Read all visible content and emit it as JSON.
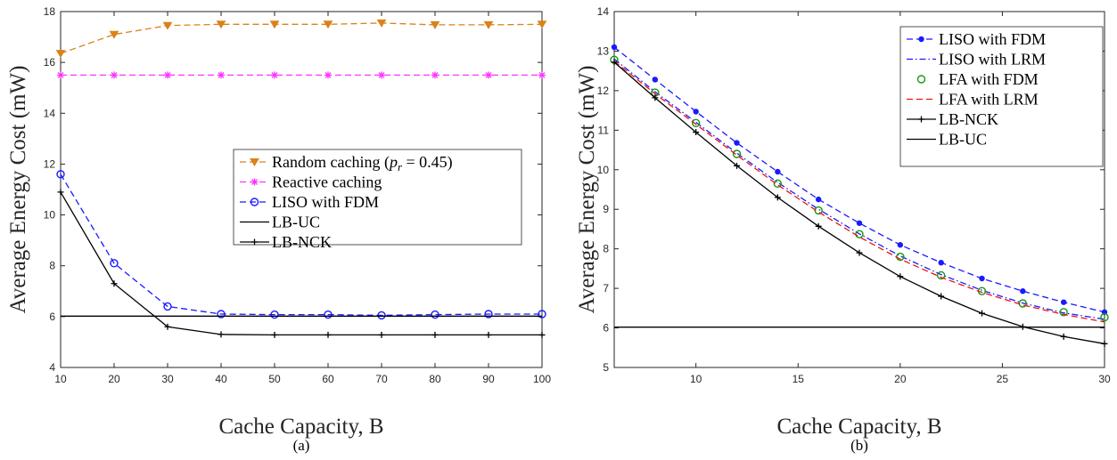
{
  "chart_data": [
    {
      "type": "line",
      "caption": "(a)",
      "xlabel": "Cache Capacity, B",
      "ylabel": "Average Energy Cost (mW)",
      "xlim": [
        10,
        100
      ],
      "ylim": [
        4,
        18
      ],
      "xticks": [
        10,
        20,
        30,
        40,
        50,
        60,
        70,
        80,
        90,
        100
      ],
      "yticks": [
        4,
        6,
        8,
        10,
        12,
        14,
        16,
        18
      ],
      "grid": false,
      "legend_position": "center-right",
      "series": [
        {
          "name": "Random caching (p_r = 0.45)",
          "legend_prefix": "Random caching (",
          "legend_math": "p",
          "legend_sub": "r",
          "legend_suffix": " = 0.45)",
          "color": "#d9821a",
          "dash": "dashed",
          "marker": "triangle-down",
          "x": [
            10,
            20,
            30,
            40,
            50,
            60,
            70,
            80,
            90,
            100
          ],
          "y": [
            16.35,
            17.1,
            17.45,
            17.5,
            17.5,
            17.5,
            17.55,
            17.48,
            17.48,
            17.5
          ]
        },
        {
          "name": "Reactive caching",
          "color": "#ff33ff",
          "dash": "dashed",
          "marker": "star",
          "x": [
            10,
            20,
            30,
            40,
            50,
            60,
            70,
            80,
            90,
            100
          ],
          "y": [
            15.5,
            15.5,
            15.5,
            15.5,
            15.5,
            15.5,
            15.5,
            15.5,
            15.5,
            15.5
          ]
        },
        {
          "name": "LISO with FDM",
          "color": "#1a1aff",
          "dash": "dashed",
          "marker": "circle-open",
          "x": [
            10,
            20,
            30,
            40,
            50,
            60,
            70,
            80,
            90,
            100
          ],
          "y": [
            11.6,
            8.1,
            6.4,
            6.1,
            6.08,
            6.08,
            6.05,
            6.08,
            6.1,
            6.1
          ]
        },
        {
          "name": "LB-UC",
          "color": "#000000",
          "dash": "solid",
          "marker": "none",
          "x": [
            10,
            100
          ],
          "y": [
            6.02,
            6.02
          ]
        },
        {
          "name": "LB-NCK",
          "color": "#000000",
          "dash": "solid",
          "marker": "plus",
          "x": [
            10,
            20,
            30,
            40,
            50,
            60,
            70,
            80,
            90,
            100
          ],
          "y": [
            10.9,
            7.3,
            5.6,
            5.3,
            5.28,
            5.28,
            5.28,
            5.28,
            5.28,
            5.28
          ]
        }
      ]
    },
    {
      "type": "line",
      "caption": "(b)",
      "xlabel": "Cache Capacity, B",
      "ylabel": "Average Energy Cost (mW)",
      "xlim": [
        6,
        30
      ],
      "ylim": [
        5,
        14
      ],
      "xticks": [
        10,
        15,
        20,
        25,
        30
      ],
      "yticks": [
        5,
        6,
        7,
        8,
        9,
        10,
        11,
        12,
        13,
        14
      ],
      "grid": false,
      "legend_position": "top-right",
      "series": [
        {
          "name": "LISO with FDM",
          "color": "#1a1aff",
          "dash": "dashed",
          "marker": "dot",
          "x": [
            6,
            8,
            10,
            12,
            14,
            16,
            18,
            20,
            22,
            24,
            26,
            28,
            30
          ],
          "y": [
            13.1,
            12.28,
            11.47,
            10.68,
            9.95,
            9.25,
            8.65,
            8.1,
            7.65,
            7.25,
            6.93,
            6.65,
            6.4
          ]
        },
        {
          "name": "LISO with LRM",
          "color": "#1a1aff",
          "dash": "dashdot",
          "marker": "none",
          "x": [
            6,
            8,
            10,
            12,
            14,
            16,
            18,
            20,
            22,
            24,
            26,
            28,
            30
          ],
          "y": [
            12.8,
            11.97,
            11.2,
            10.42,
            9.68,
            9.0,
            8.38,
            7.82,
            7.35,
            6.95,
            6.63,
            6.38,
            6.22
          ]
        },
        {
          "name": "LFA with FDM",
          "color": "#119911",
          "dash": "none",
          "marker": "circle-open",
          "x": [
            6,
            8,
            10,
            12,
            14,
            16,
            18,
            20,
            22,
            24,
            26,
            28,
            30
          ],
          "y": [
            12.78,
            11.95,
            11.18,
            10.4,
            9.65,
            8.97,
            8.37,
            7.8,
            7.33,
            6.93,
            6.62,
            6.4,
            6.27
          ]
        },
        {
          "name": "LFA with LRM",
          "color": "#ee1111",
          "dash": "dashed",
          "marker": "none",
          "x": [
            6,
            8,
            10,
            12,
            14,
            16,
            18,
            20,
            22,
            24,
            26,
            28,
            30
          ],
          "y": [
            12.75,
            11.92,
            11.15,
            10.37,
            9.62,
            8.93,
            8.3,
            7.74,
            7.28,
            6.9,
            6.58,
            6.34,
            6.15
          ]
        },
        {
          "name": "LB-NCK",
          "color": "#000000",
          "dash": "solid",
          "marker": "plus",
          "x": [
            6,
            8,
            10,
            12,
            14,
            16,
            18,
            20,
            22,
            24,
            26,
            28,
            30
          ],
          "y": [
            12.72,
            11.82,
            10.95,
            10.1,
            9.3,
            8.57,
            7.9,
            7.3,
            6.8,
            6.37,
            6.03,
            5.78,
            5.6
          ]
        },
        {
          "name": "LB-UC",
          "color": "#000000",
          "dash": "solid",
          "marker": "none",
          "x": [
            6,
            30
          ],
          "y": [
            6.02,
            6.02
          ]
        }
      ]
    }
  ]
}
